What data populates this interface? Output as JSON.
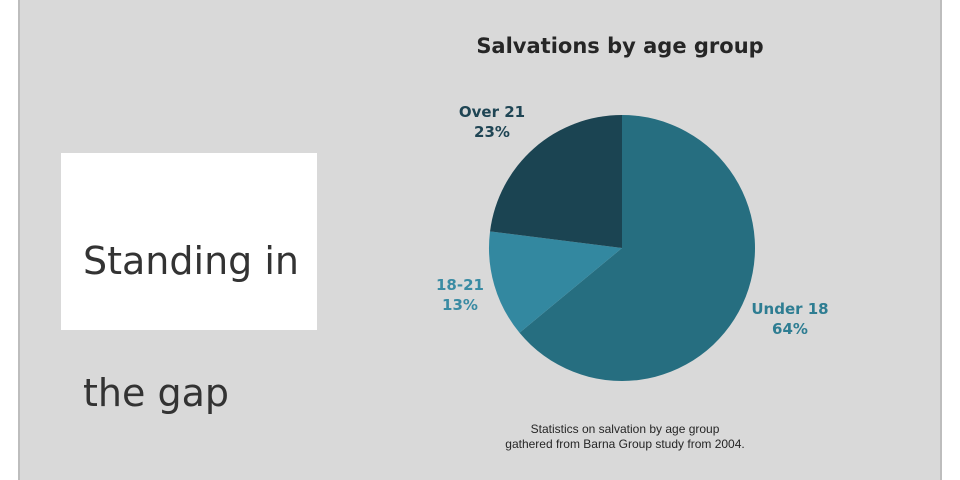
{
  "slide": {
    "title_lines": [
      "Standing in",
      "the gap"
    ]
  },
  "chart_data": {
    "type": "pie",
    "title": "Salvations by age group",
    "slices": [
      {
        "label": "Under 18",
        "value": 64,
        "display": "64%",
        "color": "#266e80"
      },
      {
        "label": "18-21",
        "value": 13,
        "display": "13%",
        "color": "#3388a0"
      },
      {
        "label": "Over 21",
        "value": 23,
        "display": "23%",
        "color": "#1b4452"
      }
    ],
    "label_colors": {
      "Under 18": "#2e7d92",
      "18-21": "#3a8ba3",
      "Over 21": "#1f4554"
    },
    "legend": "none"
  },
  "caption": {
    "lines": [
      "Statistics on salvation by age group",
      "gathered from Barna Group study from 2004."
    ]
  }
}
